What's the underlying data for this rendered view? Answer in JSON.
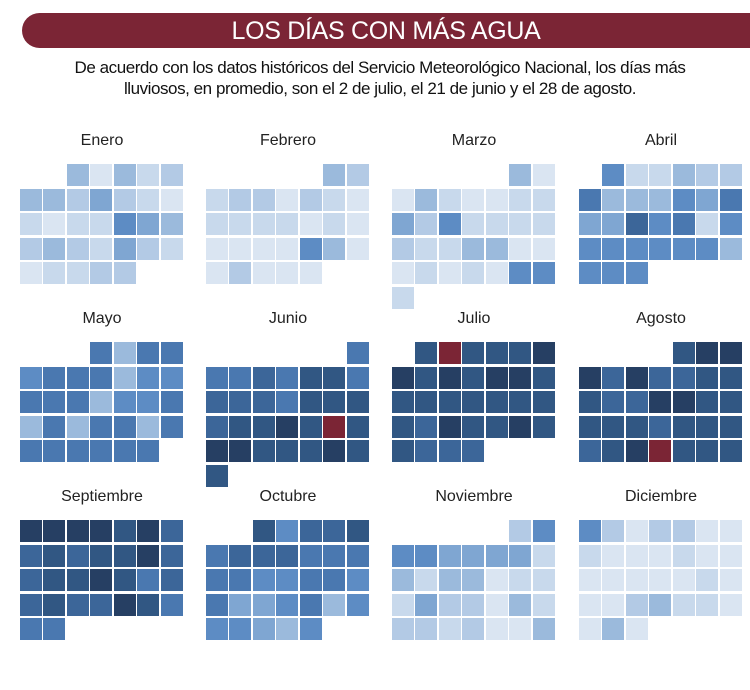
{
  "header": {
    "title": "LOS DÍAS CON MÁS AGUA",
    "subtitle_line1": "De acuerdo con los datos históricos del Servicio Meteorológico Nacional, los días más",
    "subtitle_line2": "lluviosos, en promedio, son el 2 de julio, el 21 de junio y el 28 de agosto."
  },
  "colors": {
    "banner": "#7b2535",
    "highlight": "#7b2535",
    "scale": [
      "#dae5f2",
      "#c8d9ec",
      "#b3cae5",
      "#9bbadc",
      "#7fa6d2",
      "#5d8cc4",
      "#4a78b0",
      "#3c6699",
      "#315783",
      "#263f63"
    ]
  },
  "chart_data": {
    "type": "heatmap",
    "layout": "calendar, weeks as rows, 7 columns per month",
    "value_note": "relative rainfall level, 1 (lightest) to 10 (darkest), estimated from shading",
    "months": [
      {
        "name": "Enero",
        "start_col": 2,
        "values": [
          4,
          1,
          4,
          2,
          3,
          4,
          4,
          3,
          5,
          3,
          2,
          1,
          2,
          1,
          2,
          2,
          6,
          5,
          4,
          3,
          4,
          3,
          2,
          5,
          3,
          2,
          1,
          2,
          2,
          3,
          3
        ]
      },
      {
        "name": "Febrero",
        "start_col": 5,
        "values": [
          4,
          3,
          2,
          3,
          3,
          1,
          3,
          2,
          1,
          2,
          2,
          2,
          2,
          1,
          2,
          1,
          1,
          1,
          1,
          1,
          6,
          4,
          1,
          1,
          3,
          1,
          1,
          1
        ]
      },
      {
        "name": "Marzo",
        "start_col": 5,
        "values": [
          4,
          1,
          1,
          4,
          2,
          1,
          1,
          2,
          2,
          5,
          3,
          6,
          2,
          2,
          2,
          2,
          3,
          2,
          2,
          4,
          4,
          1,
          1,
          1,
          2,
          1,
          2,
          1,
          6,
          6,
          2
        ]
      },
      {
        "name": "Abril",
        "start_col": 1,
        "values": [
          6,
          2,
          2,
          4,
          3,
          3,
          7,
          4,
          4,
          4,
          6,
          5,
          7,
          5,
          5,
          8,
          6,
          7,
          2,
          6,
          6,
          6,
          6,
          6,
          6,
          6,
          4,
          6,
          6,
          6
        ]
      },
      {
        "name": "Mayo",
        "start_col": 3,
        "values": [
          7,
          4,
          7,
          7,
          6,
          7,
          7,
          7,
          4,
          6,
          6,
          7,
          7,
          7,
          4,
          6,
          6,
          7,
          4,
          7,
          4,
          7,
          7,
          4,
          7,
          7,
          7,
          7,
          7,
          7,
          7
        ]
      },
      {
        "name": "Junio",
        "start_col": 6,
        "values": [
          7,
          7,
          7,
          8,
          7,
          9,
          9,
          7,
          8,
          8,
          8,
          7,
          9,
          9,
          9,
          8,
          9,
          9,
          10,
          9,
          10,
          9,
          10,
          10,
          9,
          9,
          9,
          10,
          9,
          9
        ],
        "highlight_days": [
          21
        ]
      },
      {
        "name": "Julio",
        "start_col": 1,
        "values": [
          9,
          10,
          9,
          9,
          9,
          10,
          10,
          9,
          10,
          9,
          10,
          10,
          9,
          9,
          9,
          9,
          9,
          9,
          9,
          9,
          9,
          8,
          10,
          9,
          9,
          10,
          9,
          9,
          8,
          8,
          8
        ],
        "highlight_days": [
          2
        ]
      },
      {
        "name": "Agosto",
        "start_col": 4,
        "values": [
          9,
          10,
          10,
          10,
          8,
          10,
          8,
          8,
          9,
          9,
          9,
          8,
          8,
          10,
          10,
          9,
          9,
          9,
          9,
          9,
          8,
          9,
          9,
          9,
          8,
          9,
          10,
          10,
          9,
          9,
          9
        ],
        "highlight_days": [
          28
        ]
      },
      {
        "name": "Septiembre",
        "start_col": 0,
        "values": [
          10,
          10,
          10,
          10,
          9,
          10,
          8,
          8,
          9,
          8,
          9,
          9,
          10,
          8,
          8,
          9,
          9,
          10,
          9,
          7,
          8,
          8,
          9,
          8,
          8,
          10,
          9,
          7,
          7,
          7
        ]
      },
      {
        "name": "Octubre",
        "start_col": 2,
        "values": [
          9,
          6,
          8,
          8,
          9,
          7,
          8,
          8,
          8,
          7,
          7,
          7,
          7,
          7,
          6,
          6,
          7,
          7,
          6,
          7,
          5,
          5,
          6,
          7,
          4,
          6,
          6,
          6,
          5,
          4,
          6
        ]
      },
      {
        "name": "Noviembre",
        "start_col": 5,
        "values": [
          3,
          6,
          6,
          6,
          5,
          5,
          5,
          5,
          2,
          4,
          2,
          4,
          4,
          1,
          2,
          2,
          2,
          5,
          3,
          3,
          1,
          4,
          2,
          3,
          3,
          2,
          3,
          1,
          1,
          4
        ]
      },
      {
        "name": "Diciembre",
        "start_col": 0,
        "values": [
          6,
          3,
          1,
          3,
          3,
          1,
          1,
          2,
          1,
          1,
          1,
          2,
          1,
          1,
          1,
          1,
          1,
          1,
          1,
          2,
          1,
          1,
          1,
          3,
          4,
          2,
          2,
          1,
          1,
          4,
          1
        ]
      }
    ]
  }
}
